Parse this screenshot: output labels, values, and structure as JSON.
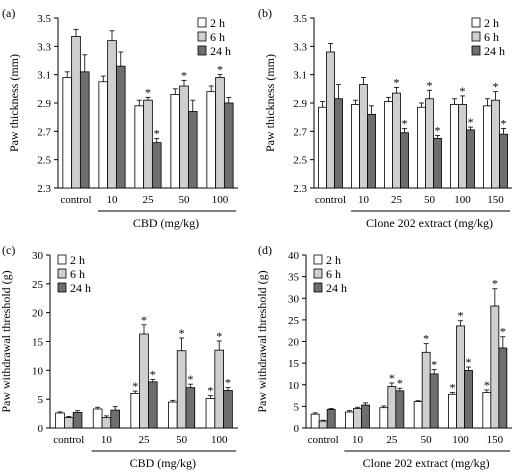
{
  "chart_data": [
    {
      "panel": "(a)",
      "type": "bar",
      "ylabel": "Paw thickness (mm)",
      "xlabel": "CBD (mg/kg)",
      "ylim": [
        2.3,
        3.5
      ],
      "yticks": [
        "2.3",
        "2.5",
        "2.7",
        "2.9",
        "3.1",
        "3.3",
        "3.5"
      ],
      "categories": [
        "control",
        "10",
        "25",
        "50",
        "100"
      ],
      "series": [
        {
          "name": "2 h",
          "fill": "#ffffff",
          "values": [
            3.08,
            3.05,
            2.88,
            2.96,
            2.98
          ],
          "errors": [
            0.04,
            0.04,
            0.04,
            0.04,
            0.04
          ],
          "sig": [
            false,
            false,
            false,
            false,
            false
          ]
        },
        {
          "name": "6 h",
          "fill": "#cfcfcf",
          "values": [
            3.37,
            3.34,
            2.92,
            3.02,
            3.08
          ],
          "errors": [
            0.05,
            0.07,
            0.02,
            0.04,
            0.02
          ],
          "sig": [
            false,
            false,
            true,
            true,
            true
          ]
        },
        {
          "name": "24 h",
          "fill": "#6e6e6e",
          "values": [
            3.12,
            3.16,
            2.62,
            2.84,
            2.9
          ],
          "errors": [
            0.12,
            0.1,
            0.03,
            0.08,
            0.04
          ],
          "sig": [
            false,
            false,
            true,
            false,
            false
          ]
        }
      ],
      "legend": "top-right",
      "grid": false
    },
    {
      "panel": "(b)",
      "type": "bar",
      "ylabel": "Paw thickness (mm)",
      "xlabel": "Clone 202 extract (mg/kg)",
      "ylim": [
        2.3,
        3.5
      ],
      "yticks": [
        "2.3",
        "2.5",
        "2.7",
        "2.9",
        "3.1",
        "3.3",
        "3.5"
      ],
      "categories": [
        "control",
        "10",
        "25",
        "50",
        "100",
        "150"
      ],
      "series": [
        {
          "name": "2 h",
          "fill": "#ffffff",
          "values": [
            2.87,
            2.89,
            2.91,
            2.87,
            2.89,
            2.88
          ],
          "errors": [
            0.04,
            0.03,
            0.03,
            0.03,
            0.04,
            0.05
          ],
          "sig": [
            false,
            false,
            false,
            false,
            false,
            false
          ]
        },
        {
          "name": "6 h",
          "fill": "#cfcfcf",
          "values": [
            3.26,
            3.03,
            2.97,
            2.93,
            2.89,
            2.92
          ],
          "errors": [
            0.06,
            0.05,
            0.04,
            0.06,
            0.06,
            0.06
          ],
          "sig": [
            false,
            false,
            true,
            true,
            true,
            true
          ]
        },
        {
          "name": "24 h",
          "fill": "#6e6e6e",
          "values": [
            2.93,
            2.82,
            2.69,
            2.65,
            2.71,
            2.68
          ],
          "errors": [
            0.1,
            0.06,
            0.03,
            0.02,
            0.02,
            0.04
          ],
          "sig": [
            false,
            false,
            true,
            true,
            true,
            true
          ]
        }
      ],
      "legend": "top-right",
      "grid": false
    },
    {
      "panel": "(c)",
      "type": "bar",
      "ylabel": "Paw withdrawal threshold (g)",
      "xlabel": "CBD (mg/kg)",
      "ylim": [
        0,
        30
      ],
      "yticks": [
        "0",
        "5",
        "10",
        "15",
        "20",
        "25",
        "30"
      ],
      "categories": [
        "control",
        "10",
        "25",
        "50",
        "100"
      ],
      "series": [
        {
          "name": "2 h",
          "fill": "#ffffff",
          "values": [
            2.6,
            3.3,
            6.0,
            4.5,
            5.1
          ],
          "errors": [
            0.2,
            0.3,
            0.4,
            0.3,
            0.5
          ],
          "sig": [
            false,
            false,
            true,
            false,
            true
          ]
        },
        {
          "name": "6 h",
          "fill": "#cfcfcf",
          "values": [
            1.8,
            1.8,
            16.3,
            13.4,
            13.5
          ],
          "errors": [
            0.2,
            0.3,
            1.6,
            2.2,
            1.6
          ],
          "sig": [
            false,
            false,
            true,
            true,
            true
          ]
        },
        {
          "name": "24 h",
          "fill": "#6e6e6e",
          "values": [
            2.7,
            3.1,
            8.0,
            7.0,
            6.5
          ],
          "errors": [
            0.3,
            0.6,
            0.4,
            0.6,
            0.5
          ],
          "sig": [
            false,
            false,
            true,
            true,
            true
          ]
        }
      ],
      "legend": "top-left",
      "grid": false
    },
    {
      "panel": "(d)",
      "type": "bar",
      "ylabel": "Paw withdrawal threshold (g)",
      "xlabel": "Clone 202 extract (mg/kg)",
      "ylim": [
        0,
        40
      ],
      "yticks": [
        "0",
        "5",
        "10",
        "15",
        "20",
        "25",
        "30",
        "35",
        "40"
      ],
      "categories": [
        "control",
        "10",
        "25",
        "50",
        "100",
        "150"
      ],
      "series": [
        {
          "name": "2 h",
          "fill": "#ffffff",
          "values": [
            3.2,
            3.7,
            4.7,
            6.1,
            7.8,
            8.2
          ],
          "errors": [
            0.3,
            0.3,
            0.4,
            0.2,
            0.4,
            0.6
          ],
          "sig": [
            false,
            false,
            false,
            false,
            true,
            true
          ]
        },
        {
          "name": "6 h",
          "fill": "#cfcfcf",
          "values": [
            1.6,
            4.5,
            9.6,
            17.5,
            23.6,
            28.2
          ],
          "errors": [
            0.2,
            0.3,
            0.8,
            2.0,
            1.2,
            4.0
          ],
          "sig": [
            false,
            false,
            true,
            true,
            true,
            true
          ]
        },
        {
          "name": "24 h",
          "fill": "#6e6e6e",
          "values": [
            4.3,
            5.3,
            8.6,
            12.5,
            13.3,
            18.5
          ],
          "errors": [
            0.2,
            0.5,
            0.6,
            1.0,
            0.8,
            2.6
          ],
          "sig": [
            false,
            false,
            true,
            true,
            true,
            true
          ]
        }
      ],
      "legend": "top-left",
      "grid": false
    }
  ]
}
